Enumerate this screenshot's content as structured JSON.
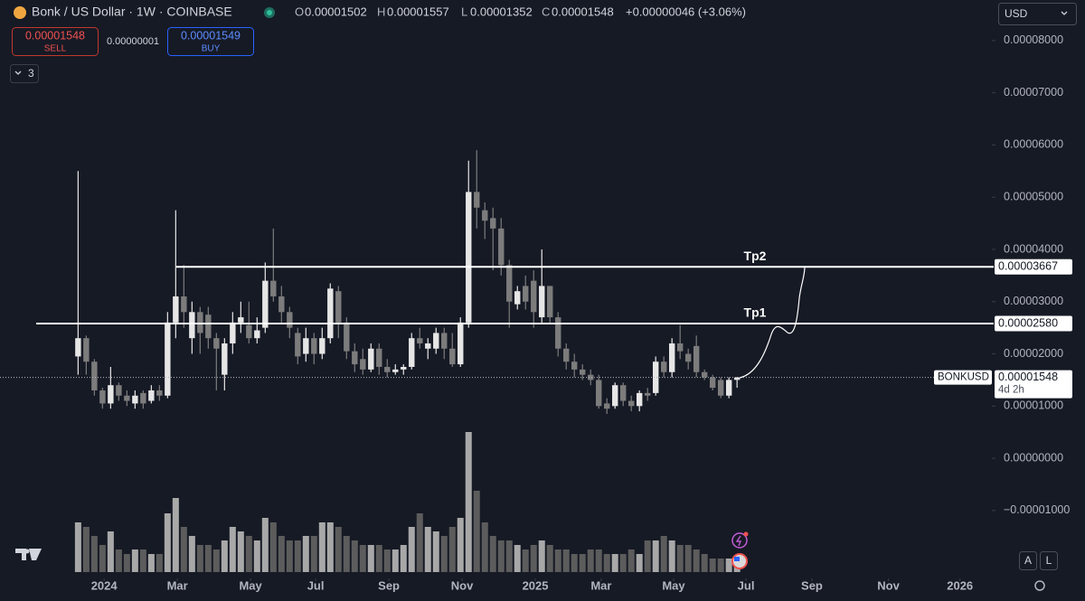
{
  "header": {
    "symbol_title": "Bonk / US Dollar · 1W · COINBASE",
    "ohlc": [
      {
        "key": "O",
        "value": "0.00001502"
      },
      {
        "key": "H",
        "value": "0.00001557"
      },
      {
        "key": "L",
        "value": "0.00001352"
      },
      {
        "key": "C",
        "value": "0.00001548"
      }
    ],
    "change": "+0.00000046 (+3.06%)",
    "sell_price": "0.00001548",
    "sell": "SELL",
    "spread": "0.00000001",
    "buy_price": "0.00001549",
    "buy": "BUY",
    "indicators_count": "3",
    "currency": "USD",
    "scale_buttons": [
      "A",
      "L"
    ]
  },
  "chart_data": {
    "type": "candlestick",
    "open": [
      1.95e-05,
      2.3e-05,
      1.85e-05,
      1.3e-05,
      1.05e-05,
      1.4e-05,
      1.2e-05,
      1.05e-05,
      1.25e-05,
      1.1e-05,
      1.3e-05,
      1.2e-05,
      2.6e-05,
      3.1e-05,
      2.3e-05,
      2.8e-05,
      2.75e-05,
      2.3e-05,
      1.6e-05,
      2.2e-05,
      2.6e-05,
      2.55e-05,
      2.3e-05,
      2.5e-05,
      3.4e-05,
      3.1e-05,
      2.8e-05,
      2.4e-05,
      2e-05,
      2.3e-05,
      2e-05,
      2.3e-05,
      3.2e-05,
      2.6e-05,
      2.05e-05,
      1.9e-05,
      1.7e-05,
      2.1e-05,
      1.75e-05,
      1.65e-05,
      1.7e-05,
      1.75e-05,
      2.3e-05,
      2.1e-05,
      2.1e-05,
      2.4e-05,
      2.1e-05,
      1.8e-05,
      2.6e-05,
      5.1e-05,
      4.75e-05,
      4.6e-05,
      4.4e-05,
      3.7e-05,
      2.95e-05,
      3.3e-05,
      3.4e-05,
      2.7e-05,
      3.3e-05,
      2.7e-05,
      2.1e-05,
      1.85e-05,
      1.7e-05,
      1.6e-05,
      1.5e-05,
      1.05e-05,
      1e-05,
      1.4e-05,
      1.1e-05,
      1e-05,
      1.25e-05,
      1.25e-05,
      1.85e-05,
      1.65e-05,
      2.2e-05,
      2e-05,
      2.15e-05,
      1.65e-05,
      1.55e-05,
      1.5e-05,
      1.2e-05,
      1.502e-05
    ],
    "high": [
      5.5e-05,
      2.35e-05,
      1.9e-05,
      1.35e-05,
      1.75e-05,
      1.45e-05,
      1.3e-05,
      1.3e-05,
      1.3e-05,
      1.4e-05,
      1.4e-05,
      2.8e-05,
      4.75e-05,
      3.7e-05,
      3e-05,
      2.9e-05,
      2.9e-05,
      2.4e-05,
      2.3e-05,
      2.8e-05,
      3e-05,
      3e-05,
      2.7e-05,
      3.75e-05,
      4.4e-05,
      3.3e-05,
      2.9e-05,
      2.5e-05,
      2.5e-05,
      2.4e-05,
      2.5e-05,
      3.35e-05,
      3.3e-05,
      2.7e-05,
      2.2e-05,
      2.1e-05,
      2.2e-05,
      2.2e-05,
      1.9e-05,
      1.8e-05,
      1.8e-05,
      2.4e-05,
      2.5e-05,
      2.3e-05,
      2.5e-05,
      2.5e-05,
      2.4e-05,
      2.7e-05,
      5.7e-05,
      5.9e-05,
      4.9e-05,
      4.8e-05,
      4.6e-05,
      3.8e-05,
      3.3e-05,
      3.5e-05,
      3.6e-05,
      4e-05,
      3.3e-05,
      2.8e-05,
      2.2e-05,
      2e-05,
      1.8e-05,
      1.7e-05,
      1.6e-05,
      1.15e-05,
      1.45e-05,
      1.45e-05,
      1.2e-05,
      1.3e-05,
      1.35e-05,
      1.95e-05,
      1.95e-05,
      2.3e-05,
      2.55e-05,
      2.1e-05,
      2.35e-05,
      1.7e-05,
      1.6e-05,
      1.55e-05,
      1.55e-05,
      1.557e-05
    ],
    "low": [
      1.6e-05,
      1.6e-05,
      1.2e-05,
      9.5e-06,
      9.5e-06,
      1.1e-05,
      1e-05,
      9.5e-06,
      9.5e-06,
      1.05e-05,
      1.1e-05,
      1.15e-05,
      2.3e-05,
      2.5e-05,
      2e-05,
      2e-05,
      2.1e-05,
      1.3e-05,
      1.3e-05,
      2e-05,
      2.4e-05,
      2.2e-05,
      2.2e-05,
      2.4e-05,
      3e-05,
      2.6e-05,
      2.3e-05,
      1.8e-05,
      1.85e-05,
      1.8e-05,
      1.9e-05,
      2.2e-05,
      2.3e-05,
      1.9e-05,
      1.65e-05,
      1.6e-05,
      1.65e-05,
      1.6e-05,
      1.55e-05,
      1.6e-05,
      1.6e-05,
      1.7e-05,
      2.1e-05,
      1.9e-05,
      2e-05,
      1.9e-05,
      1.75e-05,
      1.75e-05,
      2.5e-05,
      4.4e-05,
      4.2e-05,
      3.6e-05,
      3.5e-05,
      2.5e-05,
      2.85e-05,
      2.85e-05,
      2.5e-05,
      2.6e-05,
      2.6e-05,
      1.95e-05,
      1.7e-05,
      1.55e-05,
      1.5e-05,
      1.4e-05,
      9.5e-06,
      8.5e-06,
      9.5e-06,
      1e-05,
      9e-06,
      9e-06,
      1.1e-05,
      1.2e-05,
      1.55e-05,
      1.55e-05,
      1.9e-05,
      1.7e-05,
      1.55e-05,
      1.5e-05,
      1.3e-05,
      1.15e-05,
      1.15e-05,
      1.352e-05
    ],
    "close": [
      2.3e-05,
      1.85e-05,
      1.3e-05,
      1.05e-05,
      1.4e-05,
      1.2e-05,
      1.1e-05,
      1.2e-05,
      1.05e-05,
      1.3e-05,
      1.2e-05,
      2.6e-05,
      3.1e-05,
      2.8e-05,
      2.8e-05,
      2.4e-05,
      2.3e-05,
      2.1e-05,
      2.2e-05,
      2.6e-05,
      2.7e-05,
      2.3e-05,
      2.45e-05,
      3.4e-05,
      3.1e-05,
      2.8e-05,
      2.5e-05,
      1.95e-05,
      2.3e-05,
      2e-05,
      2.3e-05,
      3.25e-05,
      2.6e-05,
      2.05e-05,
      1.8e-05,
      1.7e-05,
      2.1e-05,
      1.75e-05,
      1.65e-05,
      1.7e-05,
      1.75e-05,
      2.3e-05,
      2.2e-05,
      2.2e-05,
      2.4e-05,
      2.1e-05,
      1.8e-05,
      2.6e-05,
      5.1e-05,
      4.8e-05,
      4.55e-05,
      4.4e-05,
      3.7e-05,
      3e-05,
      3.2e-05,
      3e-05,
      2.8e-05,
      3.3e-05,
      2.7e-05,
      2.1e-05,
      1.85e-05,
      1.7e-05,
      1.6e-05,
      1.5e-05,
      1e-05,
      9.5e-06,
      1.4e-05,
      1.1e-05,
      1e-05,
      1.25e-05,
      1.2e-05,
      1.85e-05,
      1.65e-05,
      2.2e-05,
      2.05e-05,
      1.85e-05,
      1.65e-05,
      1.55e-05,
      1.35e-05,
      1.2e-05,
      1.5e-05,
      1.548e-05
    ],
    "volume": [
      55,
      50,
      40,
      30,
      45,
      25,
      20,
      25,
      25,
      20,
      20,
      65,
      82,
      50,
      40,
      30,
      30,
      25,
      35,
      50,
      45,
      40,
      35,
      60,
      55,
      40,
      35,
      35,
      40,
      40,
      55,
      55,
      50,
      40,
      35,
      30,
      30,
      30,
      25,
      25,
      30,
      50,
      65,
      50,
      45,
      40,
      50,
      60,
      155,
      90,
      55,
      40,
      35,
      35,
      30,
      25,
      30,
      35,
      30,
      25,
      25,
      20,
      20,
      25,
      25,
      20,
      20,
      20,
      25,
      20,
      35,
      35,
      40,
      35,
      30,
      30,
      25,
      20,
      15,
      15,
      15,
      10
    ],
    "up_color": "#e6e6e6",
    "down_color": "#7c7c7c",
    "volume_up_color": "#a8a8a8",
    "volume_down_color": "#5c5c5c",
    "ylim": [
      -2.3e-05,
      8.776e-05
    ],
    "yticks": [
      {
        "value": 8e-05,
        "label": "0.00008000"
      },
      {
        "value": 7e-05,
        "label": "0.00007000"
      },
      {
        "value": 6e-05,
        "label": "0.00006000"
      },
      {
        "value": 5e-05,
        "label": "0.00005000"
      },
      {
        "value": 4e-05,
        "label": "0.00004000"
      },
      {
        "value": 3e-05,
        "label": "0.00003000"
      },
      {
        "value": 2e-05,
        "label": "0.00002000"
      },
      {
        "value": 1e-05,
        "label": "0.00001000"
      },
      {
        "value": 0,
        "label": "0.00000000"
      },
      {
        "value": -1e-05,
        "label": "−0.00001000"
      }
    ],
    "xlim": [
      -9.6,
      112.1
    ],
    "xticks": [
      {
        "value": 3.2,
        "label": "2024"
      },
      {
        "value": 12.2,
        "label": "Mar"
      },
      {
        "value": 21.2,
        "label": "May"
      },
      {
        "value": 29.2,
        "label": "Jul"
      },
      {
        "value": 38.2,
        "label": "Sep"
      },
      {
        "value": 47.2,
        "label": "Nov"
      },
      {
        "value": 56.2,
        "label": "2025"
      },
      {
        "value": 64.3,
        "label": "Mar"
      },
      {
        "value": 73.2,
        "label": "May"
      },
      {
        "value": 82.1,
        "label": "Jul"
      },
      {
        "value": 90.2,
        "label": "Sep"
      },
      {
        "value": 99.6,
        "label": "Nov"
      },
      {
        "value": 108.4,
        "label": "2026"
      }
    ],
    "levels": [
      {
        "label": "Tp2",
        "price": {
          "value": 3.667e-05,
          "label": "0.00003667"
        }
      },
      {
        "label": "Tp1",
        "price": {
          "value": 2.58e-05,
          "label": "0.00002580"
        }
      }
    ],
    "last_price": {
      "symbol": "BONKUSD",
      "price": {
        "value": 1.548e-05,
        "label": "0.00001548"
      },
      "countdown": "4d 2h"
    }
  }
}
